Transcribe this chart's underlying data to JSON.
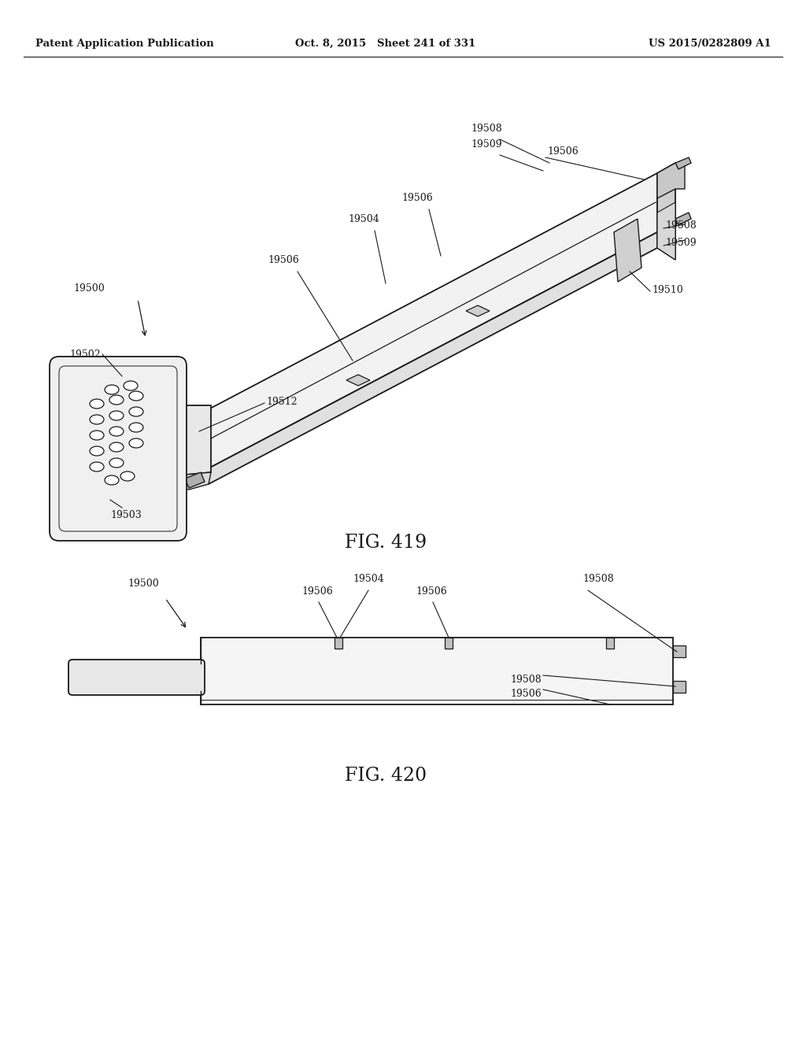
{
  "header_left": "Patent Application Publication",
  "header_center": "Oct. 8, 2015   Sheet 241 of 331",
  "header_right": "US 2015/0282809 A1",
  "fig419_label": "FIG. 419",
  "fig420_label": "FIG. 420",
  "background_color": "#ffffff",
  "line_color": "#1a1a1a",
  "text_color": "#1a1a1a",
  "header_fontsize": 9.5,
  "ref_fontsize": 9,
  "fig_label_fontsize": 17
}
